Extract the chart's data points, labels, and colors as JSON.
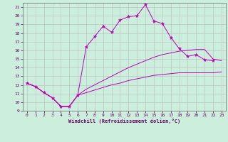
{
  "background_color": "#cceedd",
  "grid_color": "#bbbbbb",
  "line_color": "#bb00bb",
  "xlim": [
    -0.5,
    23.5
  ],
  "ylim": [
    9,
    21.5
  ],
  "yticks": [
    9,
    10,
    11,
    12,
    13,
    14,
    15,
    16,
    17,
    18,
    19,
    20,
    21
  ],
  "xticks": [
    0,
    1,
    2,
    3,
    4,
    5,
    6,
    7,
    8,
    9,
    10,
    11,
    12,
    13,
    14,
    15,
    16,
    17,
    18,
    19,
    20,
    21,
    22,
    23
  ],
  "xlabel": "Windchill (Refroidissement éolien,°C)",
  "series1_x": [
    0,
    1,
    2,
    3,
    4,
    5,
    6,
    7,
    8,
    9,
    10,
    11,
    12,
    13,
    14,
    15,
    16,
    17,
    18,
    19,
    20,
    21,
    22
  ],
  "series1_y": [
    12.2,
    11.8,
    11.1,
    10.5,
    9.5,
    9.5,
    10.8,
    16.4,
    17.6,
    18.8,
    18.1,
    19.5,
    19.9,
    20.0,
    21.3,
    19.4,
    19.1,
    17.5,
    16.2,
    15.3,
    15.5,
    14.9,
    14.8
  ],
  "series2_x": [
    0,
    1,
    2,
    3,
    4,
    5,
    6,
    7,
    8,
    9,
    10,
    11,
    12,
    13,
    14,
    15,
    16,
    17,
    18,
    19,
    20,
    21,
    22,
    23
  ],
  "series2_y": [
    12.2,
    11.8,
    11.1,
    10.5,
    9.5,
    9.5,
    10.8,
    11.1,
    11.4,
    11.7,
    12.0,
    12.2,
    12.5,
    12.7,
    12.9,
    13.1,
    13.2,
    13.3,
    13.4,
    13.4,
    13.4,
    13.4,
    13.4,
    13.5
  ],
  "series3_x": [
    0,
    1,
    2,
    3,
    4,
    5,
    6,
    7,
    8,
    9,
    10,
    11,
    12,
    13,
    14,
    15,
    16,
    17,
    18,
    19,
    20,
    21,
    22,
    23
  ],
  "series3_y": [
    12.2,
    11.8,
    11.1,
    10.5,
    9.5,
    9.5,
    10.8,
    11.5,
    12.0,
    12.5,
    13.0,
    13.5,
    14.0,
    14.4,
    14.8,
    15.2,
    15.5,
    15.7,
    15.9,
    16.0,
    16.1,
    16.1,
    15.0,
    14.8
  ]
}
